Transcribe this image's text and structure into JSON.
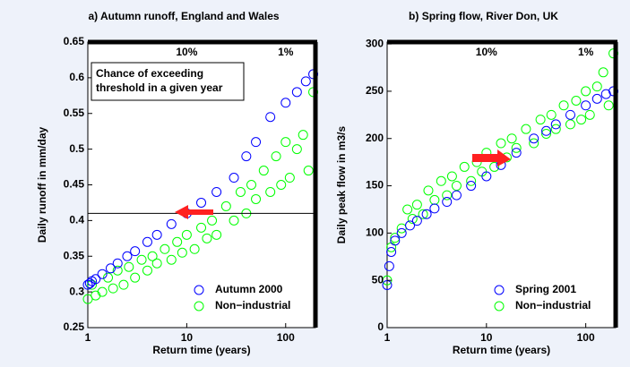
{
  "chart_data": [
    {
      "type": "scatter",
      "title": "a) Autumn runoff, England and Wales",
      "xlabel": "Return time (years)",
      "ylabel": "Daily runoff in mm/day",
      "log_x": true,
      "xlim": [
        1,
        200
      ],
      "xticks": [
        1,
        10,
        100
      ],
      "ylim": [
        0.25,
        0.65
      ],
      "yticks": [
        0.25,
        0.3,
        0.35,
        0.4,
        0.45,
        0.5,
        0.55,
        0.6,
        0.65
      ],
      "legend": "lower right",
      "threshold": 0.41,
      "textbox": "Chance of exceeding threshold in a given year",
      "annotations": [
        {
          "text": "10%",
          "x": 10
        },
        {
          "text": "1%",
          "x": 100
        }
      ],
      "series": [
        {
          "name": "Non−industrial",
          "color": "#00ff00",
          "x": [
            1,
            1.1,
            1.2,
            1.4,
            1.6,
            1.8,
            2,
            2.3,
            2.6,
            3,
            3.5,
            4,
            4.5,
            5,
            6,
            7,
            8,
            9,
            10,
            12,
            14,
            16,
            18,
            20,
            25,
            30,
            35,
            40,
            45,
            50,
            60,
            70,
            80,
            90,
            100,
            110,
            130,
            150,
            170,
            190
          ],
          "values": [
            0.29,
            0.31,
            0.295,
            0.3,
            0.32,
            0.305,
            0.33,
            0.31,
            0.335,
            0.32,
            0.345,
            0.33,
            0.35,
            0.34,
            0.36,
            0.345,
            0.37,
            0.355,
            0.38,
            0.36,
            0.39,
            0.375,
            0.4,
            0.38,
            0.42,
            0.4,
            0.44,
            0.41,
            0.45,
            0.43,
            0.47,
            0.44,
            0.49,
            0.45,
            0.51,
            0.46,
            0.5,
            0.52,
            0.47,
            0.58
          ]
        },
        {
          "name": "Autumn 2000",
          "color": "#0000ff",
          "x": [
            1,
            1.05,
            1.1,
            1.2,
            1.4,
            1.7,
            2,
            2.5,
            3,
            4,
            5,
            7,
            10,
            14,
            20,
            30,
            40,
            50,
            70,
            100,
            130,
            160,
            190
          ],
          "values": [
            0.31,
            0.312,
            0.315,
            0.318,
            0.325,
            0.333,
            0.34,
            0.35,
            0.357,
            0.37,
            0.38,
            0.395,
            0.41,
            0.425,
            0.44,
            0.46,
            0.49,
            0.51,
            0.545,
            0.565,
            0.58,
            0.595,
            0.605
          ]
        }
      ]
    },
    {
      "type": "scatter",
      "title": "b) Spring flow, River Don, UK",
      "xlabel": "Return time (years)",
      "ylabel": "Daily peak flow in m3/s",
      "log_x": true,
      "xlim": [
        1,
        200
      ],
      "xticks": [
        1,
        10,
        100
      ],
      "ylim": [
        0,
        302
      ],
      "yticks": [
        0,
        50,
        100,
        150,
        200,
        250,
        300
      ],
      "legend": "lower right",
      "annotations": [
        {
          "text": "10%",
          "x": 10
        },
        {
          "text": "1%",
          "x": 100
        }
      ],
      "series": [
        {
          "name": "Non−industrial",
          "color": "#00ff00",
          "x": [
            1,
            1.1,
            1.2,
            1.4,
            1.6,
            1.8,
            2,
            2.3,
            2.6,
            3,
            3.5,
            4,
            4.5,
            5,
            6,
            7,
            8,
            9,
            10,
            12,
            14,
            16,
            18,
            20,
            25,
            30,
            35,
            40,
            45,
            50,
            60,
            70,
            80,
            90,
            100,
            110,
            130,
            150,
            170,
            190
          ],
          "values": [
            50,
            85,
            95,
            105,
            125,
            115,
            130,
            120,
            145,
            135,
            155,
            140,
            160,
            150,
            170,
            155,
            175,
            165,
            185,
            170,
            195,
            180,
            200,
            190,
            210,
            195,
            220,
            205,
            225,
            210,
            235,
            215,
            240,
            220,
            250,
            225,
            255,
            270,
            235,
            290
          ]
        },
        {
          "name": "Spring 2001",
          "color": "#0000ff",
          "x": [
            1,
            1.05,
            1.1,
            1.2,
            1.4,
            1.7,
            2,
            2.5,
            3,
            4,
            5,
            7,
            10,
            14,
            20,
            30,
            40,
            50,
            70,
            100,
            130,
            160,
            190
          ],
          "values": [
            45,
            65,
            80,
            92,
            100,
            108,
            113,
            120,
            126,
            133,
            140,
            150,
            160,
            172,
            185,
            200,
            208,
            215,
            225,
            235,
            242,
            247,
            250
          ]
        }
      ]
    }
  ]
}
